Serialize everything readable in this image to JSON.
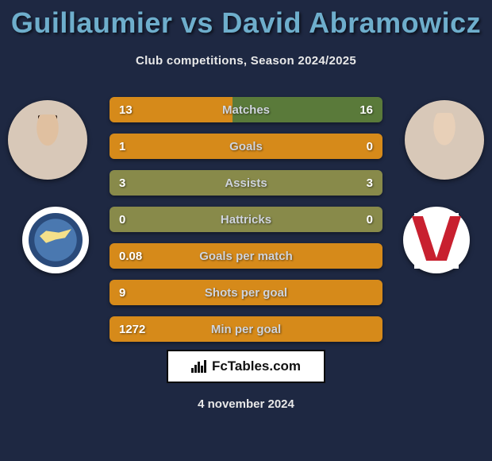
{
  "title": "Guillaumier vs David Abramowicz",
  "subtitle": "Club competitions, Season 2024/2025",
  "title_color": "#6eaecc",
  "background_color": "#1e2842",
  "player1": {
    "name": "Guillaumier"
  },
  "player2": {
    "name": "David Abramowicz"
  },
  "bar_colors": {
    "left_dominant": "#d68a1a",
    "right_dominant": "#5a7a3a",
    "tie": "#888a4a"
  },
  "rows": [
    {
      "label": "Matches",
      "left": "13",
      "right": "16",
      "bg_left": "#d68a1a",
      "bg_right": "#5a7a3a",
      "split": 0.45
    },
    {
      "label": "Goals",
      "left": "1",
      "right": "0",
      "bg_left": "#d68a1a",
      "bg_right": "#d68a1a",
      "split": 1.0
    },
    {
      "label": "Assists",
      "left": "3",
      "right": "3",
      "bg_left": "#888a4a",
      "bg_right": "#888a4a",
      "split": 1.0
    },
    {
      "label": "Hattricks",
      "left": "0",
      "right": "0",
      "bg_left": "#888a4a",
      "bg_right": "#888a4a",
      "split": 1.0
    },
    {
      "label": "Goals per match",
      "left": "0.08",
      "right": "",
      "bg_left": "#d68a1a",
      "bg_right": "#d68a1a",
      "split": 1.0
    },
    {
      "label": "Shots per goal",
      "left": "9",
      "right": "",
      "bg_left": "#d68a1a",
      "bg_right": "#d68a1a",
      "split": 1.0
    },
    {
      "label": "Min per goal",
      "left": "1272",
      "right": "",
      "bg_left": "#d68a1a",
      "bg_right": "#d68a1a",
      "split": 1.0
    }
  ],
  "brand": "FcTables.com",
  "date": "4 november 2024"
}
